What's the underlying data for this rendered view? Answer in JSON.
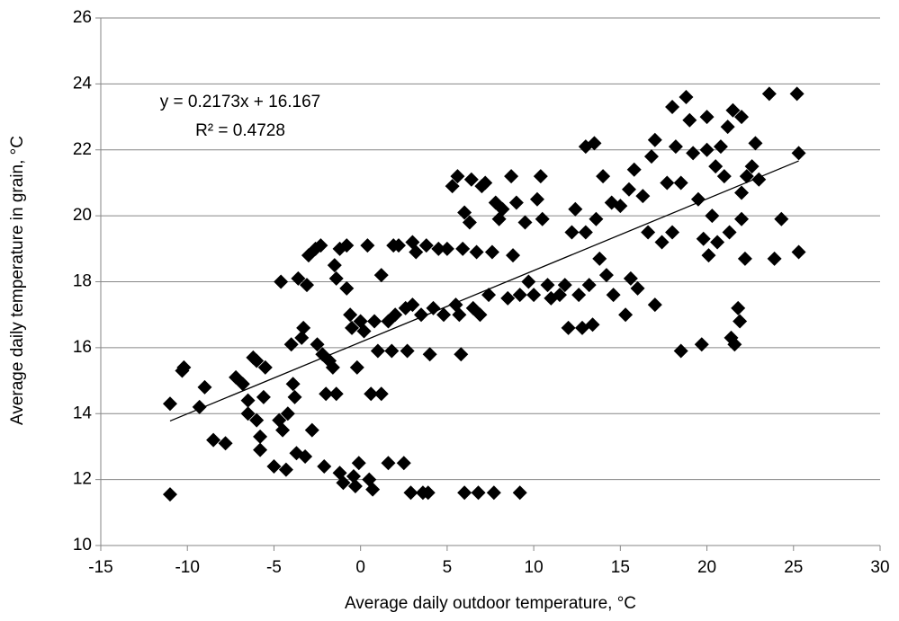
{
  "chart_data": {
    "type": "scatter",
    "xlabel": "Average daily outdoor temperature, °C",
    "ylabel": "Average daily temperature in grain, °C",
    "xlim": [
      -15,
      30
    ],
    "xticks": [
      -15,
      -10,
      -5,
      0,
      5,
      10,
      15,
      20,
      25,
      30
    ],
    "ylim": [
      10,
      26
    ],
    "yticks": [
      10,
      12,
      14,
      16,
      18,
      20,
      22,
      24,
      26
    ],
    "grid": true,
    "color": "#000000",
    "trendline": {
      "label": "y = 0.2173x + 16.167",
      "r2_label": "R² = 0.4728",
      "slope": 0.2173,
      "intercept": 16.167,
      "r2": 0.4728,
      "x": [
        -11,
        25.3
      ]
    },
    "series": [
      {
        "x": [
          -11,
          -11,
          -10.3,
          -10.2,
          -9.3,
          -9,
          -8.5,
          -7.8,
          -7.2,
          -6.8,
          -6.5,
          -6.5,
          -6.2,
          -6,
          -6,
          -5.8,
          -5.8,
          -5.6,
          -5.5,
          -5,
          -4.6,
          -4.7,
          -4.5,
          -4.3,
          -4.2,
          -4,
          -3.9,
          -3.8,
          -3.7,
          -3.6,
          -3.4,
          -3.3,
          -3.2,
          -3.1,
          -3,
          -2.8,
          -2.6,
          -2.5,
          -2.3,
          -2.2,
          -2.1,
          -2,
          -1.8,
          -1.6,
          -1.5,
          -1.4,
          -1.4,
          -1.2,
          -1.2,
          -1,
          -0.8,
          -0.8,
          -0.6,
          -0.5,
          -0.4,
          -0.3,
          -0.2,
          -0.1,
          0,
          0.2,
          0.4,
          0.5,
          0.6,
          0.7,
          0.8,
          1,
          1.2,
          1.2,
          1.6,
          1.6,
          1.8,
          1.9,
          2,
          2.2,
          2.5,
          2.6,
          2.7,
          2.9,
          3,
          3,
          3.2,
          3.5,
          3.6,
          3.8,
          3.9,
          4,
          4.2,
          4.5,
          4.8,
          5,
          5.3,
          5.5,
          5.6,
          5.7,
          5.8,
          5.9,
          6,
          6,
          6.3,
          6.4,
          6.5,
          6.7,
          6.8,
          6.9,
          7,
          7.2,
          7.4,
          7.6,
          7.7,
          7.8,
          8,
          8.2,
          8.5,
          8.7,
          8.8,
          9,
          9.2,
          9.2,
          9.5,
          9.7,
          10,
          10.2,
          10.4,
          10.5,
          10.8,
          11,
          11.5,
          11.8,
          12,
          12.2,
          12.4,
          12.6,
          12.8,
          13,
          13,
          13.2,
          13.4,
          13.5,
          13.6,
          13.8,
          14,
          14.2,
          14.5,
          14.6,
          15,
          15.3,
          15.5,
          15.6,
          15.8,
          16,
          16.3,
          16.6,
          16.8,
          17,
          17,
          17.4,
          17.7,
          18,
          18,
          18.2,
          18.5,
          18.5,
          18.8,
          19,
          19.2,
          19.5,
          19.7,
          19.8,
          20,
          20,
          20.1,
          20.3,
          20.5,
          20.6,
          20.8,
          21,
          21.2,
          21.3,
          21.4,
          21.5,
          21.6,
          21.8,
          21.9,
          22,
          22,
          22,
          22.2,
          22.3,
          22.6,
          22.8,
          23,
          23.6,
          23.9,
          24.3,
          25.2,
          25.3,
          25.3
        ],
        "values": [
          11.55,
          14.3,
          15.3,
          15.4,
          14.2,
          14.8,
          13.2,
          13.1,
          15.1,
          14.9,
          14.4,
          14,
          15.7,
          15.6,
          13.8,
          13.3,
          12.9,
          14.5,
          15.4,
          12.4,
          18,
          13.8,
          13.5,
          12.3,
          14,
          16.1,
          14.9,
          14.5,
          12.8,
          18.1,
          16.3,
          16.6,
          12.7,
          17.9,
          18.8,
          13.5,
          19,
          16.1,
          19.1,
          15.8,
          12.4,
          14.6,
          15.6,
          15.4,
          18.5,
          18.1,
          14.6,
          19,
          12.2,
          11.9,
          19.1,
          17.8,
          17,
          16.6,
          12.1,
          11.8,
          15.4,
          12.5,
          16.8,
          16.5,
          19.1,
          12,
          14.6,
          11.7,
          16.8,
          15.9,
          18.2,
          14.6,
          12.5,
          16.8,
          15.9,
          19.1,
          17,
          19.1,
          12.5,
          17.2,
          15.9,
          11.6,
          19.2,
          17.3,
          18.9,
          17,
          11.6,
          19.1,
          11.6,
          15.8,
          17.2,
          19,
          17,
          19,
          20.9,
          17.3,
          21.2,
          17,
          15.8,
          19,
          20.1,
          11.6,
          19.8,
          21.1,
          17.2,
          18.9,
          11.6,
          17,
          20.9,
          21,
          17.6,
          18.9,
          11.6,
          20.4,
          19.9,
          20.2,
          17.5,
          21.2,
          18.8,
          20.4,
          11.6,
          17.6,
          19.8,
          18,
          17.6,
          20.5,
          21.2,
          19.9,
          17.9,
          17.5,
          17.6,
          17.9,
          16.6,
          19.5,
          20.2,
          17.6,
          16.6,
          22.1,
          19.5,
          17.9,
          16.7,
          22.2,
          19.9,
          18.7,
          21.2,
          18.2,
          20.4,
          17.6,
          20.3,
          17,
          20.8,
          18.1,
          21.4,
          17.8,
          20.6,
          19.5,
          21.8,
          22.3,
          17.3,
          19.2,
          21,
          23.3,
          19.5,
          22.1,
          15.9,
          21,
          23.6,
          22.9,
          21.9,
          20.5,
          16.1,
          19.3,
          23,
          22,
          18.8,
          20,
          21.5,
          19.2,
          22.1,
          21.2,
          22.7,
          19.5,
          16.3,
          23.2,
          16.1,
          17.2,
          16.8,
          20.7,
          23,
          19.9,
          18.7,
          21.2,
          21.5,
          22.2,
          21.1,
          23.7,
          18.7,
          19.9,
          23.7,
          21.9,
          18.9
        ]
      }
    ]
  }
}
